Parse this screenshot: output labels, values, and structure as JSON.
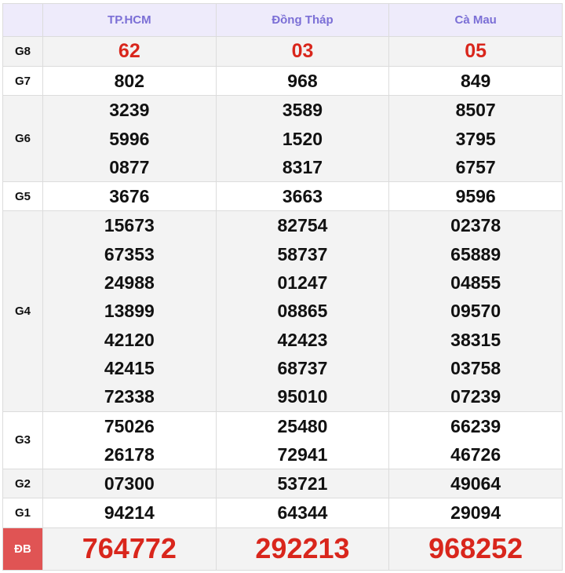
{
  "provinces": [
    "TP.HCM",
    "Đồng Tháp",
    "Cà Mau"
  ],
  "colors": {
    "header_text": "#7b6fd6",
    "prize_red": "#d9261c",
    "special_label_bg": "#e05454"
  },
  "rows": [
    {
      "label": "G8",
      "values": [
        [
          "62"
        ],
        [
          "03"
        ],
        [
          "05"
        ]
      ]
    },
    {
      "label": "G7",
      "values": [
        [
          "802"
        ],
        [
          "968"
        ],
        [
          "849"
        ]
      ]
    },
    {
      "label": "G6",
      "values": [
        [
          "3239",
          "5996",
          "0877"
        ],
        [
          "3589",
          "1520",
          "8317"
        ],
        [
          "8507",
          "3795",
          "6757"
        ]
      ]
    },
    {
      "label": "G5",
      "values": [
        [
          "3676"
        ],
        [
          "3663"
        ],
        [
          "9596"
        ]
      ]
    },
    {
      "label": "G4",
      "values": [
        [
          "15673",
          "67353",
          "24988",
          "13899",
          "42120",
          "42415",
          "72338"
        ],
        [
          "82754",
          "58737",
          "01247",
          "08865",
          "42423",
          "68737",
          "95010"
        ],
        [
          "02378",
          "65889",
          "04855",
          "09570",
          "38315",
          "03758",
          "07239"
        ]
      ]
    },
    {
      "label": "G3",
      "values": [
        [
          "75026",
          "26178"
        ],
        [
          "25480",
          "72941"
        ],
        [
          "66239",
          "46726"
        ]
      ]
    },
    {
      "label": "G2",
      "values": [
        [
          "07300"
        ],
        [
          "53721"
        ],
        [
          "49064"
        ]
      ]
    },
    {
      "label": "G1",
      "values": [
        [
          "94214"
        ],
        [
          "64344"
        ],
        [
          "29094"
        ]
      ]
    },
    {
      "label": "ĐB",
      "values": [
        [
          "764772"
        ],
        [
          "292213"
        ],
        [
          "968252"
        ]
      ]
    }
  ]
}
